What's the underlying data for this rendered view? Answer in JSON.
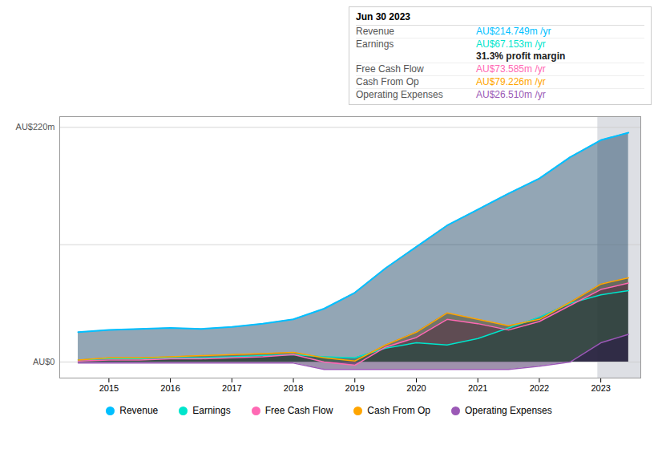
{
  "chart_data": {
    "type": "area",
    "x": [
      2014.5,
      2015.0,
      2015.5,
      2016.0,
      2016.5,
      2017.0,
      2017.5,
      2018.0,
      2018.5,
      2019.0,
      2019.5,
      2020.0,
      2020.5,
      2021.0,
      2021.5,
      2022.0,
      2022.5,
      2023.0,
      2023.45
    ],
    "series": [
      {
        "name": "Revenue",
        "color": "#00bfff",
        "fill": "#103a5a",
        "values": [
          28,
          30,
          31,
          32,
          31,
          33,
          36,
          40,
          50,
          65,
          88,
          108,
          128,
          143,
          158,
          172,
          192,
          208,
          215
        ]
      },
      {
        "name": "Earnings",
        "color": "#00e5cc",
        "fill": "#0a4a3a",
        "values": [
          2,
          3,
          3,
          4,
          4,
          5,
          6,
          7,
          5,
          4,
          13,
          18,
          16,
          22,
          32,
          42,
          55,
          63,
          67
        ]
      },
      {
        "name": "Free Cash Flow",
        "color": "#ff69b4",
        "fill": "#4a1a3a",
        "values": [
          1,
          2,
          2,
          3,
          3,
          4,
          5,
          7,
          0,
          -3,
          14,
          23,
          40,
          36,
          30,
          38,
          53,
          68,
          74
        ]
      },
      {
        "name": "Cash From Op",
        "color": "#ffa500",
        "fill": "#4a3a0a",
        "values": [
          2,
          4,
          4,
          5,
          6,
          7,
          8,
          9,
          4,
          1,
          16,
          28,
          46,
          40,
          34,
          40,
          56,
          73,
          79
        ]
      },
      {
        "name": "Operating Expenses",
        "color": "#9b59b6",
        "fill": "#2a0a4a",
        "values": [
          -1,
          -1,
          -1,
          -1,
          -1,
          -1,
          -1,
          -1,
          -7,
          -7,
          -7,
          -7,
          -7,
          -7,
          -7,
          -4,
          0,
          18,
          26
        ]
      }
    ],
    "xlim": [
      2014.2,
      2023.65
    ],
    "xticks": [
      2015,
      2016,
      2017,
      2018,
      2019,
      2020,
      2021,
      2022,
      2023
    ],
    "ylim": [
      -15,
      230
    ],
    "yticks": [
      0,
      110,
      220
    ],
    "grid": true,
    "tick_labels": "x",
    "legend": "bottom",
    "annotations": [
      {
        "text": "AU$220m",
        "y": 220
      },
      {
        "text": "AU$0",
        "y": 0
      }
    ],
    "highlight": {
      "x": [
        2022.95,
        2023.65
      ],
      "color": "#1a2a4a"
    },
    "info_box": {
      "title": "Jun 30 2023",
      "rows": [
        {
          "label": "Revenue",
          "value": "AU$214.749m /yr",
          "color": "#00bfff"
        },
        {
          "label": "Earnings",
          "value": "AU$67.153m /yr",
          "color": "#00e5cc",
          "sub": "31.3% profit margin"
        },
        {
          "label": "Free Cash Flow",
          "value": "AU$73.585m /yr",
          "color": "#ff69b4"
        },
        {
          "label": "Cash From Op",
          "value": "AU$79.226m /yr",
          "color": "#ffa500"
        },
        {
          "label": "Operating Expenses",
          "value": "AU$26.510m /yr",
          "color": "#9b59b6"
        }
      ]
    }
  }
}
